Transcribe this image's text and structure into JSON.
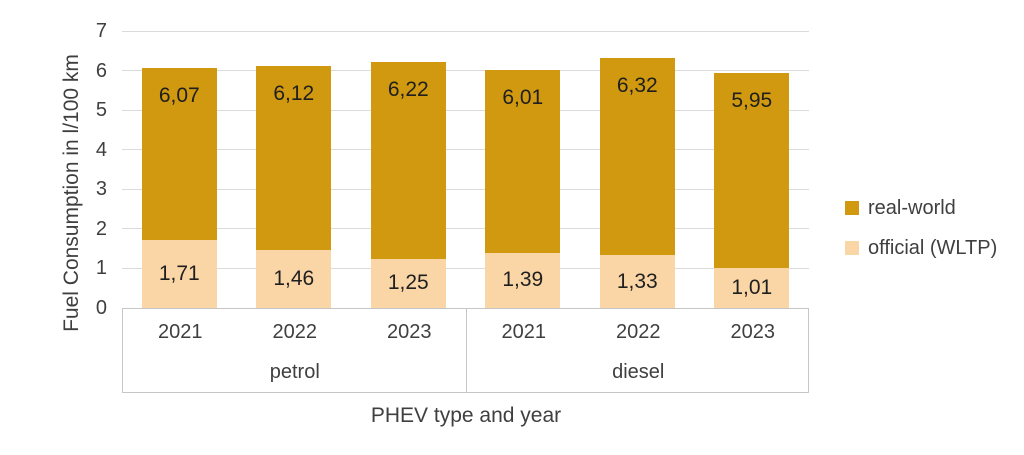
{
  "chart_data": {
    "type": "bar",
    "bar_mode": "overlap",
    "title": "",
    "xlabel": "PHEV type and year",
    "ylabel": "Fuel Consumption in l/100 km",
    "ylim": [
      0,
      7
    ],
    "yticks": [
      0,
      1,
      2,
      3,
      4,
      5,
      6,
      7
    ],
    "grid": true,
    "legend_position": "right",
    "groups": [
      "petrol",
      "diesel"
    ],
    "categories": [
      "2021",
      "2022",
      "2023",
      "2021",
      "2022",
      "2023"
    ],
    "series": [
      {
        "name": "real-world",
        "color": "#D0990F",
        "values": [
          6.07,
          6.12,
          6.22,
          6.01,
          6.32,
          5.95
        ],
        "labels": [
          "6,07",
          "6,12",
          "6,22",
          "6,01",
          "6,32",
          "5,95"
        ],
        "label_position": "inside-top"
      },
      {
        "name": "official (WLTP)",
        "color": "#FAD6A6",
        "values": [
          1.71,
          1.46,
          1.25,
          1.39,
          1.33,
          1.01
        ],
        "labels": [
          "1,71",
          "1,46",
          "1,25",
          "1,39",
          "1,33",
          "1,01"
        ],
        "label_position": "inside-center"
      }
    ]
  }
}
